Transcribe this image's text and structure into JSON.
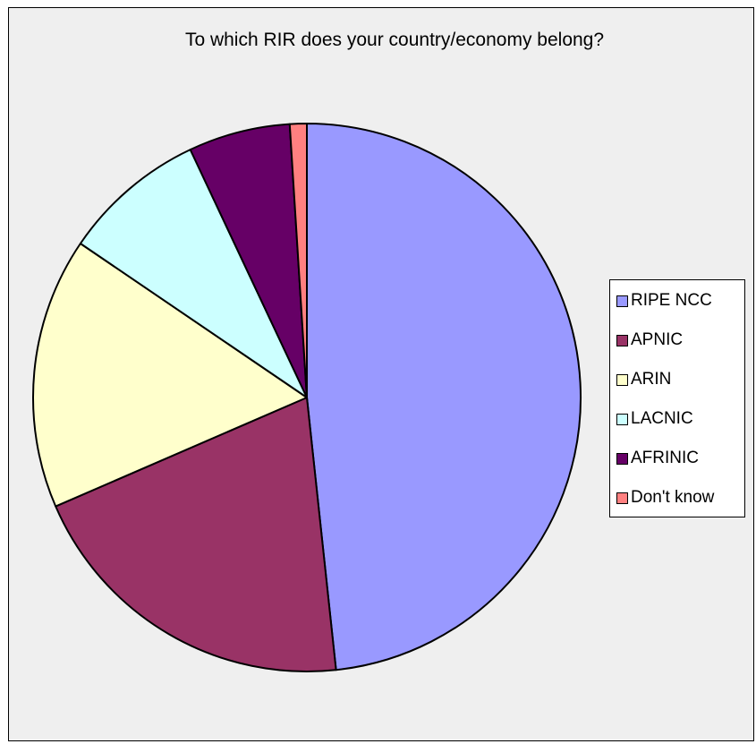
{
  "chart_data": {
    "type": "pie",
    "title": "To which RIR does your country/economy belong?",
    "categories": [
      "RIPE NCC",
      "APNIC",
      "ARIN",
      "LACNIC",
      "AFRINIC",
      "Don't know"
    ],
    "values": [
      48.3,
      20.2,
      16.0,
      8.5,
      6.0,
      1.0
    ],
    "colors": [
      "#9999ff",
      "#993366",
      "#ffffcc",
      "#ccffff",
      "#660066",
      "#ff8080"
    ],
    "start_angle_deg": 0,
    "direction": "clockwise",
    "legend_position": "right"
  }
}
